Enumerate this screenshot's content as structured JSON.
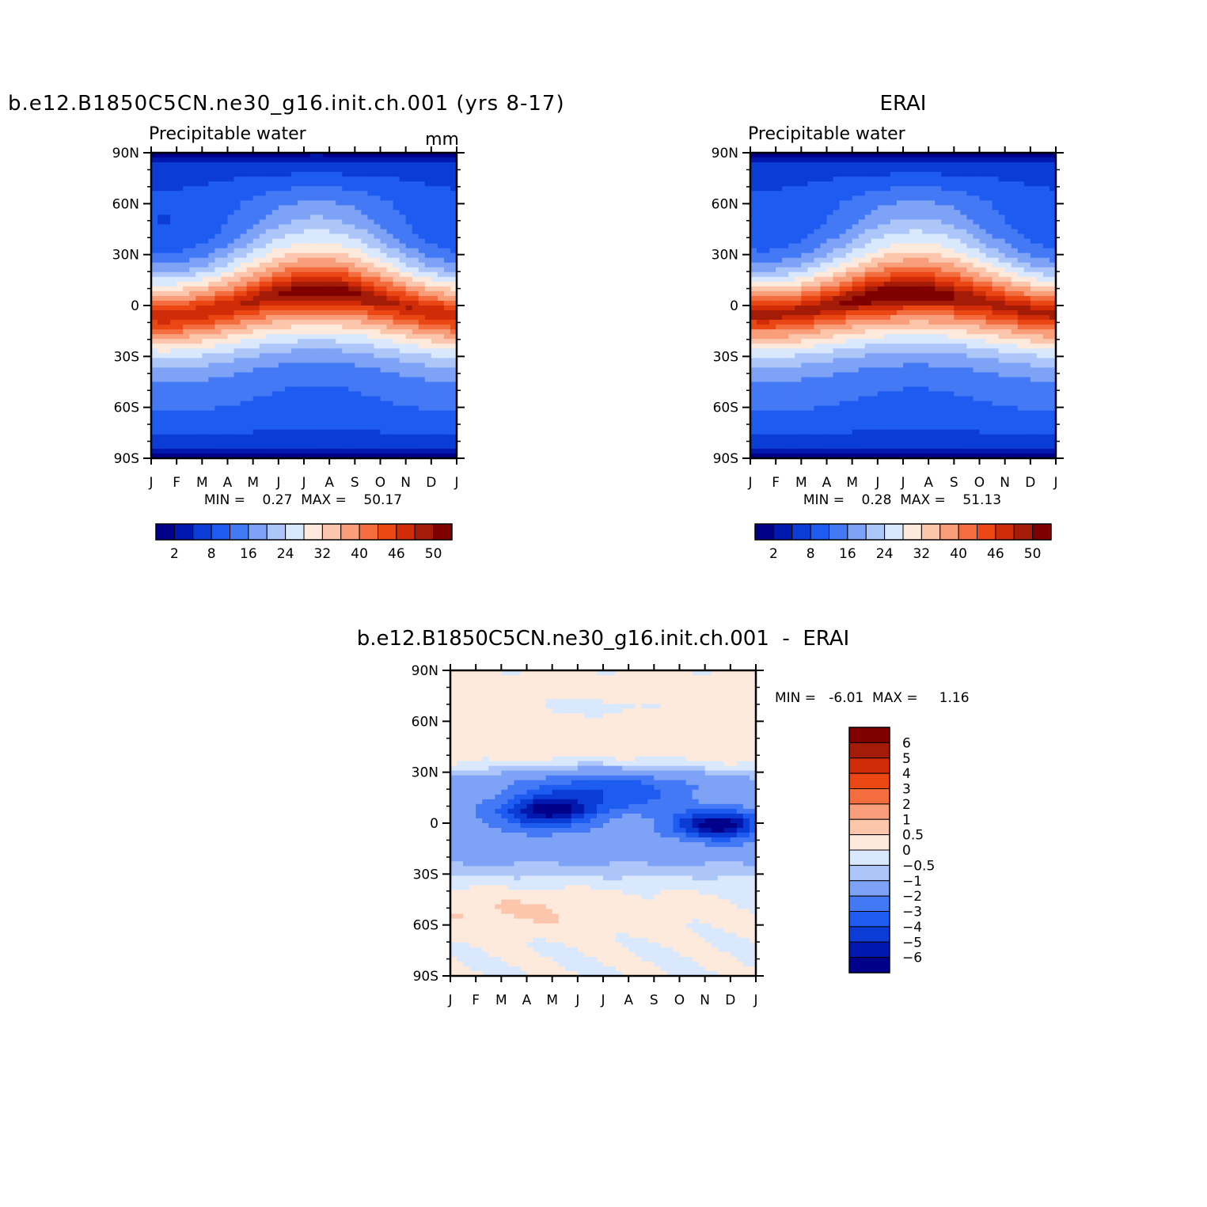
{
  "chart_data": [
    {
      "type": "heatmap",
      "title": "b.e12.B1850C5CN.ne30_g16.init.ch.001 (yrs 8-17)",
      "subtitle": "Precipitable water",
      "units": "mm",
      "x_ticks": [
        "J",
        "F",
        "M",
        "A",
        "M",
        "J",
        "J",
        "A",
        "S",
        "O",
        "N",
        "D",
        "J"
      ],
      "y_ticks": [
        "90N",
        "60N",
        "30N",
        "0",
        "30S",
        "60S",
        "90S"
      ],
      "stats_text": "MIN =    0.27  MAX =    50.17",
      "min": 0.27,
      "max": 50.17,
      "colorbar_labels": [
        "2",
        "8",
        "16",
        "24",
        "32",
        "40",
        "46",
        "50"
      ],
      "colorbar_colors": [
        "#00008b",
        "#0018ae",
        "#0b3cd6",
        "#1e5bf0",
        "#4479f5",
        "#7ea2f5",
        "#adc6fa",
        "#d9e8fc",
        "#feeadc",
        "#fcc6ad",
        "#f89e7b",
        "#f36d3e",
        "#ea4714",
        "#d02c08",
        "#a41c07",
        "#800000"
      ],
      "peak_value": 51,
      "peak_month": 7.3,
      "peak_lat": 8,
      "itcz_amplitude": 7
    },
    {
      "type": "heatmap",
      "title": "ERAI",
      "subtitle": "Precipitable water",
      "x_ticks": [
        "J",
        "F",
        "M",
        "A",
        "M",
        "J",
        "J",
        "A",
        "S",
        "O",
        "N",
        "D",
        "J"
      ],
      "y_ticks": [
        "90N",
        "60N",
        "30N",
        "0",
        "30S",
        "60S",
        "90S"
      ],
      "stats_text": "MIN =    0.28  MAX =    51.13",
      "min": 0.28,
      "max": 51.13,
      "colorbar_labels": [
        "2",
        "8",
        "16",
        "24",
        "32",
        "40",
        "46",
        "50"
      ],
      "colorbar_colors": [
        "#00008b",
        "#0018ae",
        "#0b3cd6",
        "#1e5bf0",
        "#4479f5",
        "#7ea2f5",
        "#adc6fa",
        "#d9e8fc",
        "#feeadc",
        "#fcc6ad",
        "#f89e7b",
        "#f36d3e",
        "#ea4714",
        "#d02c08",
        "#a41c07",
        "#800000"
      ],
      "peak_value": 52,
      "peak_month": 6.0,
      "peak_lat": 6,
      "itcz_amplitude": 6
    },
    {
      "type": "heatmap",
      "title": "b.e12.B1850C5CN.ne30_g16.init.ch.001  -  ERAI",
      "x_ticks": [
        "J",
        "F",
        "M",
        "A",
        "M",
        "J",
        "J",
        "A",
        "S",
        "O",
        "N",
        "D",
        "J"
      ],
      "y_ticks": [
        "90N",
        "60N",
        "30N",
        "0",
        "30S",
        "60S",
        "90S"
      ],
      "stats_text": "MIN =   -6.01  MAX =     1.16",
      "min": -6.01,
      "max": 1.16,
      "colorbar_labels": [
        "6",
        "5",
        "4",
        "3",
        "2",
        "1",
        "0.5",
        "0",
        "-0.5",
        "-1",
        "-2",
        "-3",
        "-4",
        "-5",
        "-6"
      ],
      "colorbar_colors": [
        "#800000",
        "#a41c07",
        "#d02c08",
        "#ea4714",
        "#f36d3e",
        "#f89e7b",
        "#fcc6ad",
        "#feeadc",
        "#d9e8fc",
        "#adc6fa",
        "#7ea2f5",
        "#4479f5",
        "#1e5bf0",
        "#0b3cd6",
        "#0018ae",
        "#00008b"
      ],
      "diff_levels": [
        -6,
        -5,
        -4,
        -3,
        -2,
        -1,
        -0.5,
        0,
        0.5,
        1,
        2,
        3,
        4,
        5,
        6
      ]
    }
  ]
}
